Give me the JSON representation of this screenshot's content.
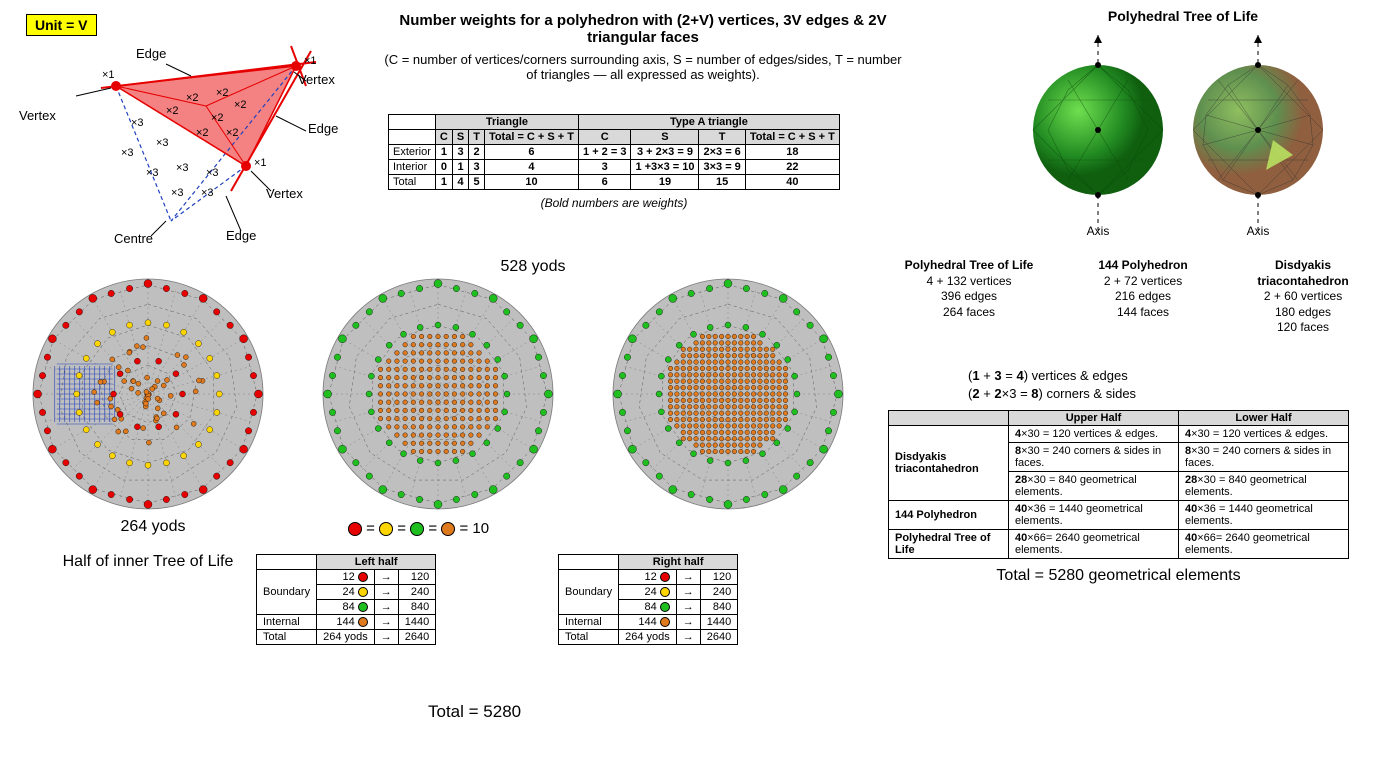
{
  "unit_label": "Unit = V",
  "triangle_labels": {
    "vertex": "Vertex",
    "edge": "Edge",
    "centre": "Centre",
    "x1": "×1",
    "x2": "×2",
    "x3": "×3"
  },
  "colors": {
    "red": "#e60000",
    "yellow": "#ffd500",
    "green": "#1fbf1f",
    "orange": "#e07a1f",
    "grey_fill": "#bfbfbf",
    "grey_line": "#8c8c8c",
    "blue": "#2040c0",
    "tri_fill": "#f26c6c",
    "table_header": "#d9d9d9"
  },
  "main_title": "Number weights for a polyhedron with (2+V) vertices, 3V edges & 2V triangular faces",
  "main_sub": "(C = number of vertices/corners surrounding axis, S = number of edges/sides, T = number of triangles — all expressed as weights).",
  "weight_table": {
    "group1": "Triangle",
    "group2": "Type A triangle",
    "cols": [
      "C",
      "S",
      "T",
      "Total = C + S + T",
      "C",
      "S",
      "T",
      "Total = C + S + T"
    ],
    "rows": [
      {
        "label": "Exterior",
        "vals": [
          "1",
          "3",
          "2",
          "6",
          "1 + 2 = 3",
          "3 + 2×3 = 9",
          "2×3 = 6",
          "18"
        ]
      },
      {
        "label": "Interior",
        "vals": [
          "0",
          "1",
          "3",
          "4",
          "3",
          "1 +3×3 = 10",
          "3×3 = 9",
          "22"
        ]
      },
      {
        "label": "Total",
        "vals": [
          "1",
          "4",
          "5",
          "10",
          "6",
          "19",
          "15",
          "40"
        ]
      }
    ],
    "note": "(Bold numbers are weights)"
  },
  "tree_title": "Polyhedral Tree of Life",
  "axis_label": "Axis",
  "poly_stats": [
    {
      "name": "Polyhedral Tree of Life",
      "v": "4 + 132 vertices",
      "e": "396 edges",
      "f": "264 faces"
    },
    {
      "name": "144 Polyhedron",
      "v": "2 + 72 vertices",
      "e": "216 edges",
      "f": "144 faces"
    },
    {
      "name": "Disdyakis triacontahedron",
      "v": "2 + 60 vertices",
      "e": "180 edges",
      "f": "120 faces"
    }
  ],
  "formula1": "(1 + 3 = 4) vertices & edges",
  "formula2": "(2 + 2×3 = 8) corners & sides",
  "right_table": {
    "headers": [
      "",
      "Upper Half",
      "Lower Half"
    ],
    "rows": [
      {
        "label": "Disdyakis triacontahedron",
        "span": 3,
        "cells": [
          [
            "4×30 = 120 vertices & edges.",
            "4×30 = 120 vertices & edges."
          ],
          [
            "8×30 = 240 corners & sides in faces.",
            "8×30 = 240 corners & sides in faces."
          ],
          [
            "28×30 = 840 geometrical elements.",
            "28×30 = 840 geometrical elements."
          ]
        ]
      },
      {
        "label": "144 Polyhedron",
        "span": 1,
        "cells": [
          [
            "40×36 = 1440 geometrical elements.",
            "40×36 = 1440 geometrical elements."
          ]
        ]
      },
      {
        "label": "Polyhedral Tree of Life",
        "span": 1,
        "cells": [
          [
            "40×66= 2640 geometrical elements.",
            "40×66= 2640 geometrical elements."
          ]
        ]
      }
    ]
  },
  "right_total": "Total = 5280 geometrical elements",
  "yods": {
    "left_label": "264 yods",
    "center_label": "528 yods",
    "half_caption": "Half of inner Tree of Life"
  },
  "legend_eq": " = 10",
  "half_tables": {
    "left_title": "Left half",
    "right_title": "Right half",
    "rows": [
      {
        "section": "Boundary",
        "n": "12",
        "color": "red",
        "to": "120"
      },
      {
        "section": "",
        "n": "24",
        "color": "yellow",
        "to": "240"
      },
      {
        "section": "",
        "n": "84",
        "color": "green",
        "to": "840"
      },
      {
        "section": "Internal",
        "n": "144",
        "color": "orange",
        "to": "1440"
      },
      {
        "section": "Total",
        "n": "264 yods",
        "color": "",
        "to": "2640"
      }
    ]
  },
  "bottom_total": "Total = 5280"
}
